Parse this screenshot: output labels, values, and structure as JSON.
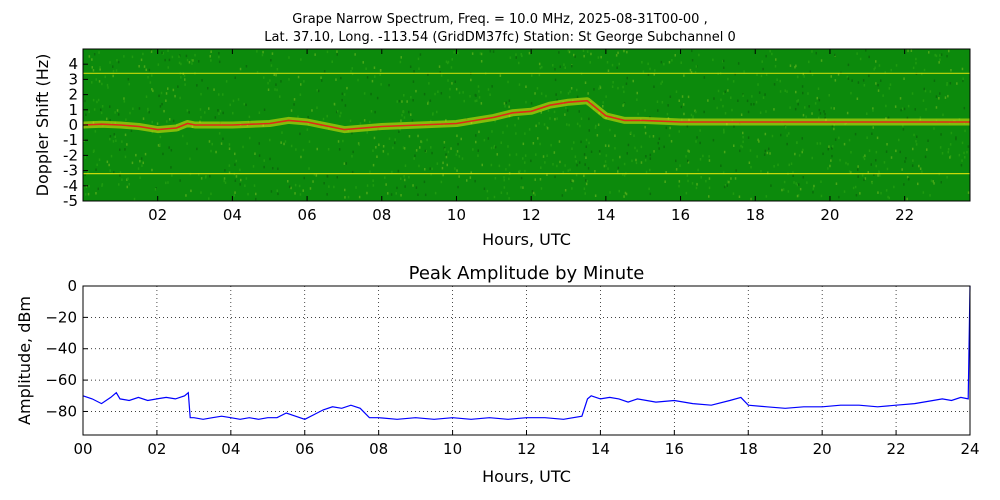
{
  "figure": {
    "title_line1": "Grape Narrow Spectrum, Freq. = 10.0 MHz, 2025-08-31T00-00 ,",
    "title_line2": "Lat.  37.10, Long. -113.54 (GridDM37fc) Station: St George Subchannel 0"
  },
  "colors": {
    "spectrogram_background": "#0c8a0c",
    "spectrogram_carrier": "#e81a1a",
    "spectrogram_band": "#e8e80a",
    "amplitude_line": "#0000ff"
  },
  "chart_data": [
    {
      "type": "heatmap",
      "title": "",
      "xlabel": "Hours, UTC",
      "ylabel": "Doppler Shift (Hz)",
      "xlim": [
        0,
        23.75
      ],
      "ylim": [
        -5,
        5
      ],
      "x_ticks": [
        "02",
        "04",
        "06",
        "08",
        "10",
        "12",
        "14",
        "16",
        "18",
        "20",
        "22"
      ],
      "x_tick_values": [
        2,
        4,
        6,
        8,
        10,
        12,
        14,
        16,
        18,
        20,
        22
      ],
      "y_ticks": [
        "4",
        "3",
        "2",
        "1",
        "0",
        "-1",
        "-2",
        "-3",
        "-4",
        "-5"
      ],
      "y_tick_values": [
        4,
        3,
        2,
        1,
        0,
        -1,
        -2,
        -3,
        -4,
        -5
      ],
      "grid": false,
      "reference_lines_hz": [
        3.4,
        -3.2
      ],
      "carrier_trace": {
        "x": [
          0,
          0.5,
          1,
          1.5,
          2,
          2.5,
          2.8,
          3,
          4,
          5,
          5.5,
          6,
          7,
          8,
          9,
          10,
          11,
          11.5,
          12,
          12.5,
          13,
          13.5,
          13.8,
          14,
          14.5,
          15,
          16,
          17,
          18,
          19,
          20,
          21,
          22,
          23,
          23.75
        ],
        "y": [
          0,
          0.05,
          0,
          -0.1,
          -0.3,
          -0.2,
          0.1,
          0,
          0,
          0.1,
          0.3,
          0.2,
          -0.3,
          -0.1,
          0,
          0.1,
          0.5,
          0.8,
          0.9,
          1.3,
          1.5,
          1.6,
          1.0,
          0.6,
          0.3,
          0.3,
          0.2,
          0.2,
          0.2,
          0.2,
          0.2,
          0.2,
          0.2,
          0.2,
          0.2
        ]
      }
    },
    {
      "type": "line",
      "title": "Peak Amplitude by Minute",
      "xlabel": "Hours, UTC",
      "ylabel": "Amplitude, dBm",
      "xlim": [
        0,
        24
      ],
      "ylim": [
        -95,
        0
      ],
      "x_ticks": [
        "00",
        "02",
        "04",
        "06",
        "08",
        "10",
        "12",
        "14",
        "16",
        "18",
        "20",
        "22",
        "24"
      ],
      "x_tick_values": [
        0,
        2,
        4,
        6,
        8,
        10,
        12,
        14,
        16,
        18,
        20,
        22,
        24
      ],
      "y_ticks": [
        "0",
        "−20",
        "−40",
        "−60",
        "−80"
      ],
      "y_tick_values": [
        0,
        -20,
        -40,
        -60,
        -80
      ],
      "grid": true,
      "series": [
        {
          "x": [
            0,
            0.25,
            0.5,
            0.75,
            0.9,
            1,
            1.25,
            1.5,
            1.75,
            2,
            2.25,
            2.5,
            2.75,
            2.85,
            2.9,
            3,
            3.25,
            3.5,
            3.75,
            4,
            4.25,
            4.5,
            4.75,
            5,
            5.25,
            5.5,
            5.75,
            6,
            6.25,
            6.5,
            6.75,
            7,
            7.25,
            7.5,
            7.75,
            8,
            8.5,
            9,
            9.5,
            10,
            10.5,
            11,
            11.5,
            12,
            12.5,
            13,
            13.5,
            13.65,
            13.75,
            14,
            14.25,
            14.5,
            14.75,
            15,
            15.5,
            16,
            16.5,
            17,
            17.5,
            17.8,
            18,
            18.5,
            19,
            19.5,
            20,
            20.5,
            21,
            21.5,
            22,
            22.5,
            23,
            23.25,
            23.5,
            23.75,
            23.95,
            24
          ],
          "y": [
            -70,
            -72,
            -75,
            -71,
            -68,
            -72,
            -73,
            -71,
            -73,
            -72,
            -71,
            -72,
            -70,
            -68,
            -84,
            -84,
            -85,
            -84,
            -83,
            -84,
            -85,
            -84,
            -85,
            -84,
            -84,
            -81,
            -83,
            -85,
            -82,
            -79,
            -77,
            -78,
            -76,
            -78,
            -84,
            -84,
            -85,
            -84,
            -85,
            -84,
            -85,
            -84,
            -85,
            -84,
            -84,
            -85,
            -83,
            -72,
            -70,
            -72,
            -71,
            -72,
            -74,
            -72,
            -74,
            -73,
            -75,
            -76,
            -73,
            -71,
            -76,
            -77,
            -78,
            -77,
            -77,
            -76,
            -76,
            -77,
            -76,
            -75,
            -73,
            -72,
            -73,
            -71,
            -72,
            0
          ]
        }
      ]
    }
  ]
}
